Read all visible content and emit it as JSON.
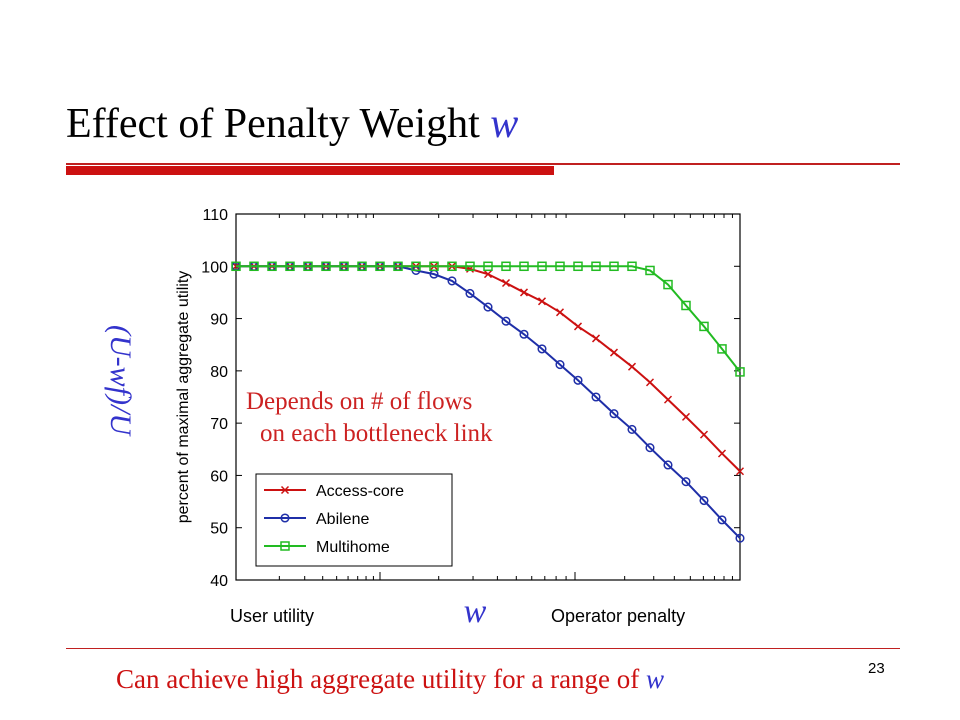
{
  "slide": {
    "title_text": "Effect of Penalty Weight ",
    "title_var": "w",
    "page_number": "23",
    "footer_text": "Can achieve high aggregate utility for a range of ",
    "footer_var": "w"
  },
  "annotation": {
    "line1": "Depends on # of flows",
    "line2": "on each bottleneck link"
  },
  "axis_overlay": {
    "y_formula": "(U-wf)/U",
    "x_symbol": "w",
    "x_left_label": "User utility",
    "x_right_label": "Operator penalty"
  },
  "colors": {
    "accent_red": "#cc1111",
    "accent_blue": "#3333cc"
  },
  "chart_data": {
    "type": "line",
    "ylabel": "percent of maximal aggregate utility",
    "ylim": [
      40,
      110
    ],
    "yticks": [
      40,
      50,
      60,
      70,
      80,
      90,
      100,
      110
    ],
    "x_scale": "log",
    "x_index_range": [
      0,
      28
    ],
    "legend_position": "bottom-left",
    "series": [
      {
        "name": "Access-core",
        "color": "#cc1111",
        "marker": "x",
        "x": [
          0,
          1,
          2,
          3,
          4,
          5,
          6,
          7,
          8,
          9,
          10,
          11,
          12,
          13,
          14,
          15,
          16,
          17,
          18,
          19,
          20,
          21,
          22,
          23,
          24,
          25,
          26,
          27,
          28
        ],
        "values": [
          100,
          100,
          100,
          100,
          100,
          100,
          100,
          100,
          100,
          100,
          100,
          100,
          100,
          99.5,
          98.5,
          96.8,
          95,
          93.3,
          91.2,
          88.5,
          86.2,
          83.5,
          80.8,
          77.8,
          74.5,
          71.2,
          67.8,
          64.2,
          60.8
        ]
      },
      {
        "name": "Abilene",
        "color": "#1f2fa8",
        "marker": "o",
        "x": [
          0,
          1,
          2,
          3,
          4,
          5,
          6,
          7,
          8,
          9,
          10,
          11,
          12,
          13,
          14,
          15,
          16,
          17,
          18,
          19,
          20,
          21,
          22,
          23,
          24,
          25,
          26,
          27,
          28
        ],
        "values": [
          100,
          100,
          100,
          100,
          100,
          100,
          100,
          100,
          100,
          100,
          99.2,
          98.5,
          97.2,
          94.8,
          92.2,
          89.5,
          87,
          84.2,
          81.2,
          78.2,
          75,
          71.8,
          68.8,
          65.3,
          62,
          58.8,
          55.2,
          51.5,
          48
        ]
      },
      {
        "name": "Multihome",
        "color": "#22bb22",
        "marker": "s",
        "x": [
          0,
          1,
          2,
          3,
          4,
          5,
          6,
          7,
          8,
          9,
          10,
          11,
          12,
          13,
          14,
          15,
          16,
          17,
          18,
          19,
          20,
          21,
          22,
          23,
          24,
          25,
          26,
          27,
          28
        ],
        "values": [
          100,
          100,
          100,
          100,
          100,
          100,
          100,
          100,
          100,
          100,
          100,
          100,
          100,
          100,
          100,
          100,
          100,
          100,
          100,
          100,
          100,
          100,
          100,
          99.2,
          96.5,
          92.5,
          88.5,
          84.2,
          79.8
        ]
      }
    ]
  }
}
